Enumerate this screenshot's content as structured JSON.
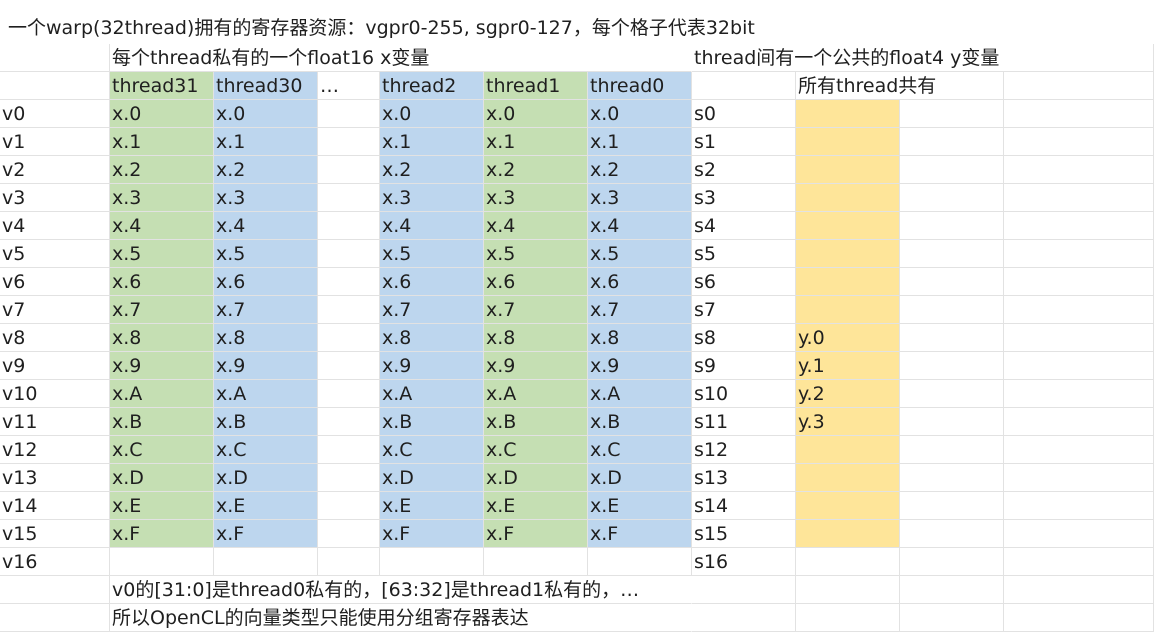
{
  "title": "一个warp(32thread)拥有的寄存器资源：vgpr0-255, sgpr0-127，每个格子代表32bit",
  "vgpr": {
    "caption": "每个thread私有的一个float16 x变量",
    "threads": [
      {
        "name": "thread31",
        "color": "green"
      },
      {
        "name": "thread30",
        "color": "blue"
      },
      {
        "name": "…",
        "color": "none"
      },
      {
        "name": "thread2",
        "color": "blue"
      },
      {
        "name": "thread1",
        "color": "green"
      },
      {
        "name": "thread0",
        "color": "blue"
      }
    ],
    "rows": [
      "v0",
      "v1",
      "v2",
      "v3",
      "v4",
      "v5",
      "v6",
      "v7",
      "v8",
      "v9",
      "v10",
      "v11",
      "v12",
      "v13",
      "v14",
      "v15",
      "v16"
    ],
    "values": [
      "x.0",
      "x.1",
      "x.2",
      "x.3",
      "x.4",
      "x.5",
      "x.6",
      "x.7",
      "x.8",
      "x.9",
      "x.A",
      "x.B",
      "x.C",
      "x.D",
      "x.E",
      "x.F"
    ]
  },
  "sgpr": {
    "caption": "thread间有一个公共的float4 y变量",
    "subcaption": "所有thread共有",
    "rows": [
      "s0",
      "s1",
      "s2",
      "s3",
      "s4",
      "s5",
      "s6",
      "s7",
      "s8",
      "s9",
      "s10",
      "s11",
      "s12",
      "s13",
      "s14",
      "s15",
      "s16"
    ],
    "values": [
      "",
      "",
      "",
      "",
      "",
      "",
      "",
      "",
      "y.0",
      "y.1",
      "y.2",
      "y.3",
      "",
      "",
      "",
      "",
      ""
    ]
  },
  "notes": [
    "v0的[31:0]是thread0私有的，[63:32]是thread1私有的，…",
    "所以OpenCL的向量类型只能使用分组寄存器表达"
  ],
  "colors": {
    "green": "#c5dfb3",
    "blue": "#bdd6ee",
    "gold": "#fee599",
    "gridline": "#e2e2e2"
  }
}
